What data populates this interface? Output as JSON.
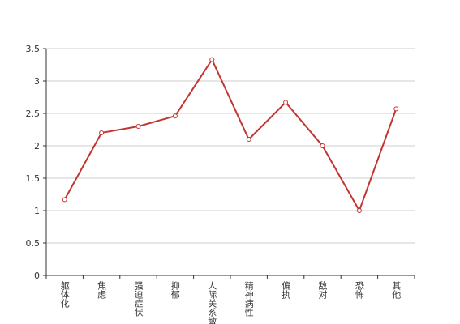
{
  "chart_data": {
    "type": "line",
    "categories": [
      "躯体化",
      "焦虑",
      "强迫症状",
      "抑郁",
      "人际关系敏感",
      "精神病性",
      "偏执",
      "敌对",
      "恐怖",
      "其他"
    ],
    "series": [
      {
        "color": "#c23531",
        "values": [
          1.17,
          2.2,
          2.3,
          2.46,
          3.33,
          2.1,
          2.67,
          2.0,
          1.0,
          2.57
        ]
      }
    ],
    "ylim": [
      0,
      3.5
    ],
    "yticks": [
      0,
      0.5,
      1,
      1.5,
      2,
      2.5,
      3,
      3.5
    ],
    "grid": true
  }
}
